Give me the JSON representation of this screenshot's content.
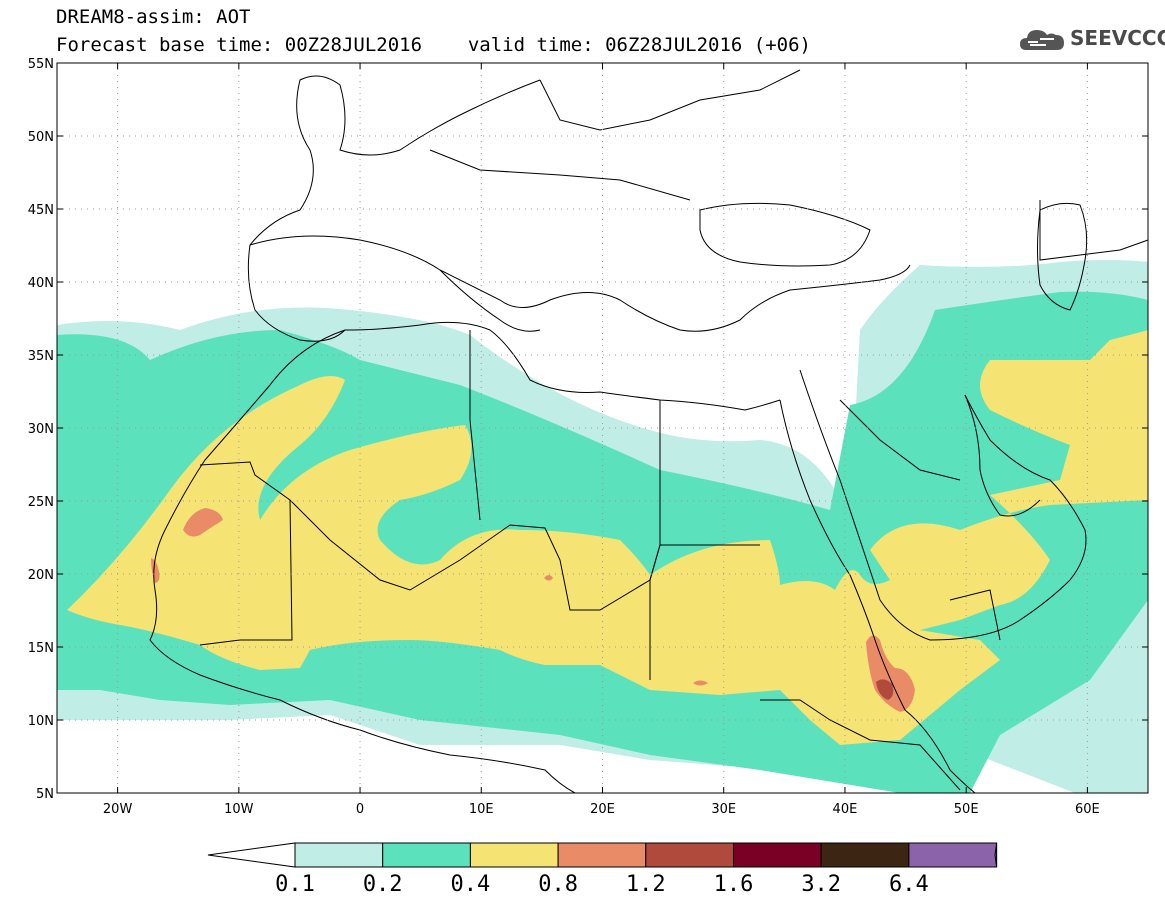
{
  "header": {
    "title": "DREAM8-assim: AOT",
    "base_label": "Forecast base time: 00Z28JUL2016",
    "valid_label": "valid time: 06Z28JUL2016 (+06)"
  },
  "logo": {
    "text": "SEEVCCC",
    "icon": "cloud-icon"
  },
  "map": {
    "lon_range": [
      -25,
      65
    ],
    "lat_range": [
      5,
      55
    ],
    "lat_ticks": [
      {
        "value": 5,
        "label": "5N"
      },
      {
        "value": 10,
        "label": "10N"
      },
      {
        "value": 15,
        "label": "15N"
      },
      {
        "value": 20,
        "label": "20N"
      },
      {
        "value": 25,
        "label": "25N"
      },
      {
        "value": 30,
        "label": "30N"
      },
      {
        "value": 35,
        "label": "35N"
      },
      {
        "value": 40,
        "label": "40N"
      },
      {
        "value": 45,
        "label": "45N"
      },
      {
        "value": 50,
        "label": "50N"
      },
      {
        "value": 55,
        "label": "55N"
      }
    ],
    "lon_ticks": [
      {
        "value": -20,
        "label": "20W"
      },
      {
        "value": -10,
        "label": "10W"
      },
      {
        "value": 0,
        "label": "0"
      },
      {
        "value": 10,
        "label": "10E"
      },
      {
        "value": 20,
        "label": "20E"
      },
      {
        "value": 30,
        "label": "30E"
      },
      {
        "value": 40,
        "label": "40E"
      },
      {
        "value": 50,
        "label": "50E"
      },
      {
        "value": 60,
        "label": "60E"
      }
    ],
    "grid": "dotted"
  },
  "colorbar": {
    "labels": [
      "0.1",
      "0.2",
      "0.4",
      "0.8",
      "1.2",
      "1.6",
      "3.2",
      "6.4"
    ],
    "colors": [
      "#ffffff",
      "#c0ede6",
      "#5ce1bd",
      "#f5e373",
      "#e98b66",
      "#b04a3c",
      "#7a0025",
      "#3d2514",
      "#8a63a8"
    ]
  }
}
